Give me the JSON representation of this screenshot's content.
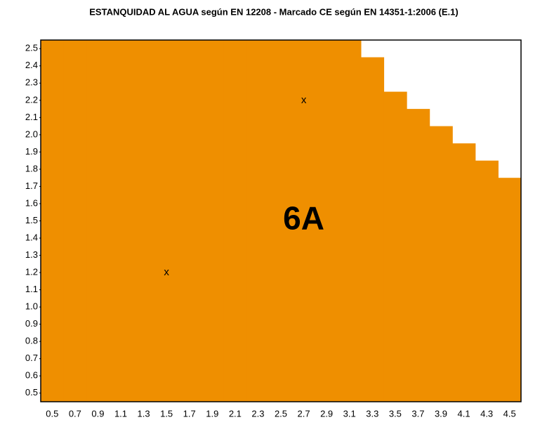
{
  "chart_data": {
    "type": "bar",
    "title": "ESTANQUIDAD AL AGUA según EN 12208  -  Marcado CE según EN 14351-1:2006 (E.1)",
    "categories": [
      "0.5",
      "0.7",
      "0.9",
      "1.1",
      "1.3",
      "1.5",
      "1.7",
      "1.9",
      "2.1",
      "2.3",
      "2.5",
      "2.7",
      "2.9",
      "3.1",
      "3.3",
      "3.5",
      "3.7",
      "3.9",
      "4.1",
      "4.3",
      "4.5"
    ],
    "values": [
      2.55,
      2.55,
      2.55,
      2.55,
      2.55,
      2.55,
      2.55,
      2.55,
      2.55,
      2.55,
      2.55,
      2.55,
      2.55,
      2.55,
      2.45,
      2.25,
      2.15,
      2.05,
      1.95,
      1.85,
      1.75
    ],
    "color": "#ef8f00",
    "ylim": [
      0.45,
      2.55
    ],
    "yticks": [
      0.5,
      0.6,
      0.7,
      0.8,
      0.9,
      {
        "value": 1,
        "label": "1.0"
      },
      1.1,
      1.2,
      1.3,
      1.4,
      1.5,
      1.6,
      1.7,
      1.8,
      1.9,
      {
        "value": 2,
        "label": "2.0"
      },
      2.1,
      2.2,
      2.3,
      2.4,
      2.5
    ],
    "annotations": [
      {
        "text": "x",
        "x": "1.5",
        "y": 1.2
      },
      {
        "text": "x",
        "x": "2.7",
        "y": 2.2
      },
      {
        "text": "6A",
        "x": "2.7",
        "y": 1.5
      }
    ]
  }
}
